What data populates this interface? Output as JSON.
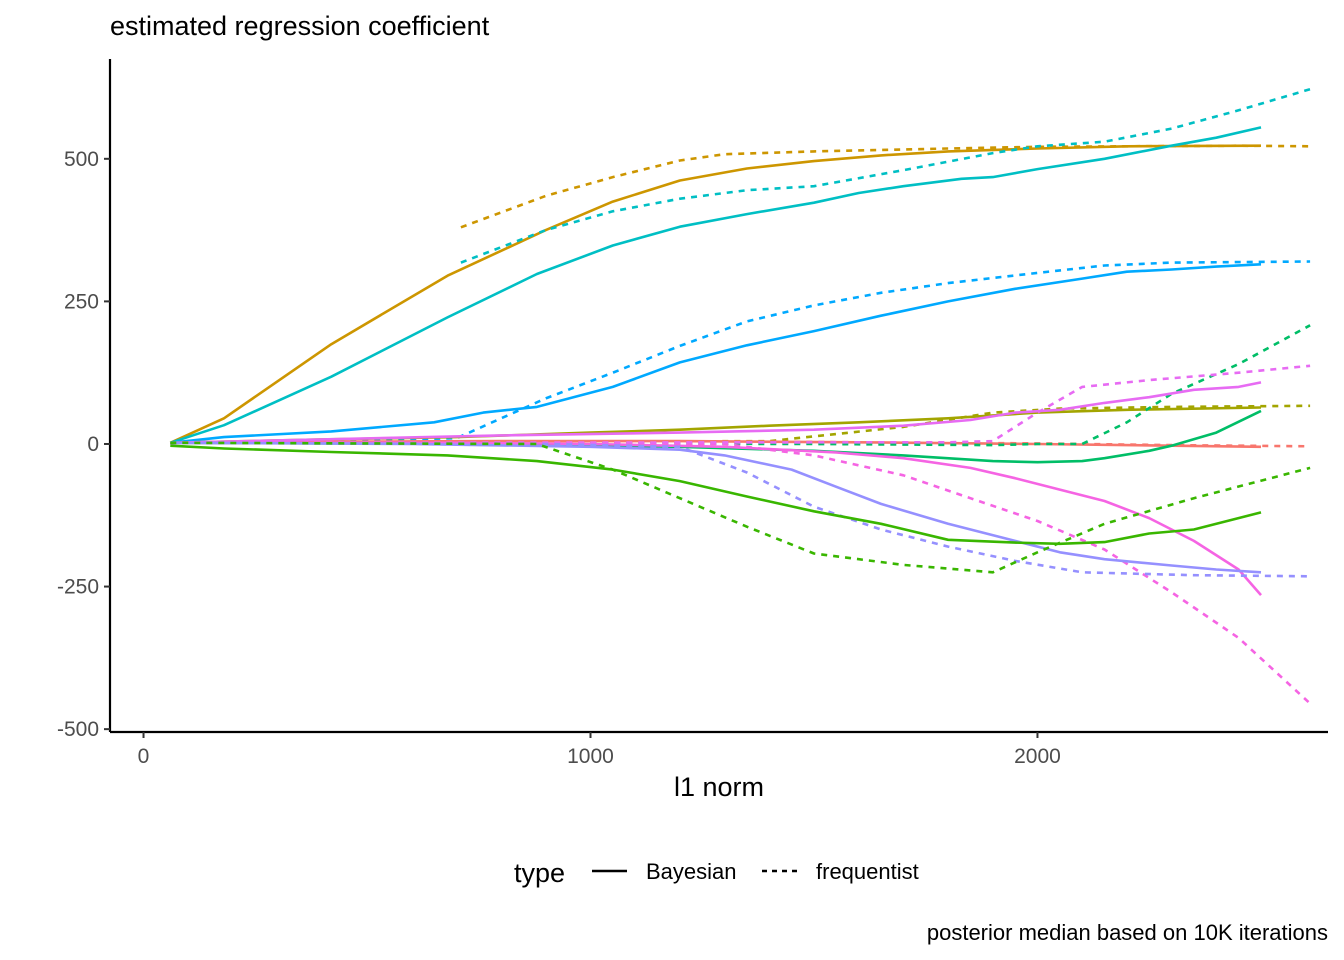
{
  "chart_data": {
    "type": "line",
    "title": "estimated regression coefficient",
    "xlabel": "l1 norm",
    "ylabel": "",
    "caption": "posterior median based on 10K iterations",
    "xlim": [
      -75,
      2650
    ],
    "ylim": [
      -505,
      675
    ],
    "x_ticks": [
      0,
      1000,
      2000
    ],
    "x_tick_labels": [
      "0",
      "1000",
      "2000"
    ],
    "y_ticks": [
      -500,
      -250,
      0,
      250,
      500
    ],
    "y_tick_labels": [
      "-500",
      "-250",
      "0",
      "250",
      "500"
    ],
    "grid": false,
    "legend": {
      "title": "type",
      "position": "bottom",
      "entries": [
        {
          "label": "Bayesian",
          "dash": "solid"
        },
        {
          "label": "frequentist",
          "dash": "dashed"
        }
      ]
    },
    "series": [
      {
        "type": "Bayesian",
        "color": "#CD9600",
        "points": [
          [
            60,
            2
          ],
          [
            180,
            45
          ],
          [
            420,
            175
          ],
          [
            680,
            295
          ],
          [
            900,
            375
          ],
          [
            1050,
            425
          ],
          [
            1200,
            462
          ],
          [
            1350,
            483
          ],
          [
            1500,
            496
          ],
          [
            1650,
            506
          ],
          [
            1800,
            513
          ],
          [
            2000,
            518
          ],
          [
            2200,
            522
          ],
          [
            2500,
            523
          ]
        ]
      },
      {
        "type": "frequentist",
        "color": "#CD9600",
        "points": [
          [
            710,
            380
          ],
          [
            900,
            435
          ],
          [
            1050,
            468
          ],
          [
            1200,
            497
          ],
          [
            1300,
            508
          ],
          [
            1500,
            513
          ],
          [
            1800,
            518
          ],
          [
            2000,
            521
          ],
          [
            2200,
            522
          ],
          [
            2450,
            523
          ],
          [
            2610,
            522
          ]
        ]
      },
      {
        "type": "Bayesian",
        "color": "#00BFC4",
        "points": [
          [
            60,
            2
          ],
          [
            180,
            33
          ],
          [
            420,
            118
          ],
          [
            680,
            222
          ],
          [
            880,
            298
          ],
          [
            1050,
            348
          ],
          [
            1200,
            381
          ],
          [
            1350,
            403
          ],
          [
            1500,
            423
          ],
          [
            1600,
            440
          ],
          [
            1700,
            452
          ],
          [
            1830,
            465
          ],
          [
            1900,
            468
          ],
          [
            2000,
            482
          ],
          [
            2150,
            500
          ],
          [
            2300,
            523
          ],
          [
            2400,
            537
          ],
          [
            2500,
            555
          ]
        ]
      },
      {
        "type": "frequentist",
        "color": "#00BFC4",
        "points": [
          [
            710,
            318
          ],
          [
            900,
            375
          ],
          [
            1050,
            408
          ],
          [
            1200,
            430
          ],
          [
            1350,
            445
          ],
          [
            1500,
            452
          ],
          [
            1700,
            480
          ],
          [
            1900,
            510
          ],
          [
            2000,
            522
          ],
          [
            2150,
            530
          ],
          [
            2300,
            553
          ],
          [
            2450,
            585
          ],
          [
            2610,
            622
          ]
        ]
      },
      {
        "type": "Bayesian",
        "color": "#00A9FF",
        "points": [
          [
            60,
            2
          ],
          [
            180,
            12
          ],
          [
            420,
            22
          ],
          [
            650,
            38
          ],
          [
            760,
            55
          ],
          [
            880,
            65
          ],
          [
            1050,
            100
          ],
          [
            1200,
            143
          ],
          [
            1350,
            173
          ],
          [
            1500,
            198
          ],
          [
            1650,
            225
          ],
          [
            1800,
            250
          ],
          [
            1950,
            272
          ],
          [
            2100,
            290
          ],
          [
            2200,
            302
          ],
          [
            2300,
            306
          ],
          [
            2400,
            311
          ],
          [
            2500,
            315
          ]
        ]
      },
      {
        "type": "frequentist",
        "color": "#00A9FF",
        "points": [
          [
            60,
            2
          ],
          [
            700,
            10
          ],
          [
            900,
            80
          ],
          [
            1050,
            125
          ],
          [
            1200,
            172
          ],
          [
            1350,
            215
          ],
          [
            1500,
            243
          ],
          [
            1650,
            265
          ],
          [
            1800,
            282
          ],
          [
            2000,
            300
          ],
          [
            2150,
            313
          ],
          [
            2300,
            318
          ],
          [
            2610,
            320
          ]
        ]
      },
      {
        "type": "Bayesian",
        "color": "#A3A500",
        "points": [
          [
            60,
            2
          ],
          [
            400,
            8
          ],
          [
            700,
            12
          ],
          [
            1000,
            20
          ],
          [
            1200,
            25
          ],
          [
            1400,
            32
          ],
          [
            1600,
            38
          ],
          [
            1800,
            45
          ],
          [
            2000,
            55
          ],
          [
            2200,
            60
          ],
          [
            2500,
            64
          ]
        ]
      },
      {
        "type": "frequentist",
        "color": "#A3A500",
        "points": [
          [
            60,
            2
          ],
          [
            1400,
            5
          ],
          [
            1700,
            30
          ],
          [
            1900,
            55
          ],
          [
            2050,
            62
          ],
          [
            2300,
            65
          ],
          [
            2610,
            67
          ]
        ]
      },
      {
        "type": "Bayesian",
        "color": "#F8766D",
        "points": [
          [
            60,
            2
          ],
          [
            400,
            4
          ],
          [
            800,
            5
          ],
          [
            1200,
            5
          ],
          [
            1600,
            3
          ],
          [
            2000,
            0
          ],
          [
            2300,
            -3
          ],
          [
            2500,
            -5
          ]
        ]
      },
      {
        "type": "frequentist",
        "color": "#F8766D",
        "points": [
          [
            60,
            2
          ],
          [
            800,
            4
          ],
          [
            1400,
            4
          ],
          [
            2000,
            1
          ],
          [
            2300,
            -2
          ],
          [
            2610,
            -4
          ]
        ]
      },
      {
        "type": "Bayesian",
        "color": "#00BE67",
        "points": [
          [
            60,
            2
          ],
          [
            800,
            0
          ],
          [
            1200,
            -5
          ],
          [
            1500,
            -12
          ],
          [
            1700,
            -20
          ],
          [
            1900,
            -30
          ],
          [
            2000,
            -32
          ],
          [
            2100,
            -30
          ],
          [
            2150,
            -25
          ],
          [
            2250,
            -12
          ],
          [
            2300,
            -3
          ],
          [
            2400,
            20
          ],
          [
            2500,
            58
          ]
        ]
      },
      {
        "type": "frequentist",
        "color": "#00BE67",
        "points": [
          [
            60,
            2
          ],
          [
            1500,
            0
          ],
          [
            1900,
            -2
          ],
          [
            2000,
            0
          ],
          [
            2100,
            0
          ],
          [
            2200,
            38
          ],
          [
            2300,
            88
          ],
          [
            2450,
            140
          ],
          [
            2610,
            208
          ]
        ]
      },
      {
        "type": "Bayesian",
        "color": "#F564E3",
        "points": [
          [
            60,
            2
          ],
          [
            700,
            2
          ],
          [
            1000,
            0
          ],
          [
            1300,
            -5
          ],
          [
            1550,
            -15
          ],
          [
            1700,
            -25
          ],
          [
            1850,
            -42
          ],
          [
            1950,
            -60
          ],
          [
            2050,
            -80
          ],
          [
            2150,
            -100
          ],
          [
            2250,
            -130
          ],
          [
            2350,
            -170
          ],
          [
            2450,
            -220
          ],
          [
            2500,
            -265
          ]
        ]
      },
      {
        "type": "frequentist",
        "color": "#F564E3",
        "points": [
          [
            60,
            2
          ],
          [
            1300,
            0
          ],
          [
            1500,
            -20
          ],
          [
            1700,
            -55
          ],
          [
            1850,
            -95
          ],
          [
            2000,
            -135
          ],
          [
            2150,
            -185
          ],
          [
            2300,
            -260
          ],
          [
            2450,
            -340
          ],
          [
            2610,
            -455
          ]
        ]
      },
      {
        "type": "Bayesian",
        "color": "#E76BF3",
        "points": [
          [
            60,
            2
          ],
          [
            400,
            8
          ],
          [
            800,
            15
          ],
          [
            1200,
            20
          ],
          [
            1500,
            25
          ],
          [
            1700,
            32
          ],
          [
            1850,
            42
          ],
          [
            1950,
            55
          ],
          [
            2050,
            60
          ],
          [
            2150,
            72
          ],
          [
            2250,
            82
          ],
          [
            2350,
            95
          ],
          [
            2450,
            100
          ],
          [
            2500,
            108
          ]
        ]
      },
      {
        "type": "frequentist",
        "color": "#E76BF3",
        "points": [
          [
            60,
            2
          ],
          [
            1800,
            3
          ],
          [
            1900,
            5
          ],
          [
            2000,
            55
          ],
          [
            2100,
            100
          ],
          [
            2250,
            112
          ],
          [
            2450,
            125
          ],
          [
            2610,
            137
          ]
        ]
      },
      {
        "type": "Bayesian",
        "color": "#9590FF",
        "points": [
          [
            60,
            2
          ],
          [
            600,
            0
          ],
          [
            1000,
            -5
          ],
          [
            1200,
            -10
          ],
          [
            1300,
            -20
          ],
          [
            1450,
            -45
          ],
          [
            1550,
            -75
          ],
          [
            1650,
            -105
          ],
          [
            1800,
            -140
          ],
          [
            1950,
            -170
          ],
          [
            2050,
            -190
          ],
          [
            2150,
            -202
          ],
          [
            2300,
            -213
          ],
          [
            2400,
            -220
          ],
          [
            2500,
            -225
          ]
        ]
      },
      {
        "type": "frequentist",
        "color": "#9590FF",
        "points": [
          [
            60,
            2
          ],
          [
            900,
            0
          ],
          [
            1200,
            -5
          ],
          [
            1350,
            -50
          ],
          [
            1500,
            -110
          ],
          [
            1650,
            -150
          ],
          [
            1800,
            -180
          ],
          [
            1950,
            -205
          ],
          [
            2100,
            -225
          ],
          [
            2350,
            -230
          ],
          [
            2610,
            -232
          ]
        ]
      },
      {
        "type": "Bayesian",
        "color": "#39B600",
        "points": [
          [
            60,
            -3
          ],
          [
            180,
            -8
          ],
          [
            420,
            -14
          ],
          [
            680,
            -20
          ],
          [
            880,
            -30
          ],
          [
            1050,
            -45
          ],
          [
            1200,
            -65
          ],
          [
            1350,
            -92
          ],
          [
            1500,
            -118
          ],
          [
            1650,
            -140
          ],
          [
            1800,
            -168
          ],
          [
            1950,
            -173
          ],
          [
            2050,
            -175
          ],
          [
            2150,
            -172
          ],
          [
            2250,
            -157
          ],
          [
            2350,
            -150
          ],
          [
            2500,
            -120
          ]
        ]
      },
      {
        "type": "frequentist",
        "color": "#39B600",
        "points": [
          [
            60,
            2
          ],
          [
            880,
            0
          ],
          [
            1050,
            -45
          ],
          [
            1200,
            -95
          ],
          [
            1350,
            -145
          ],
          [
            1500,
            -192
          ],
          [
            1700,
            -212
          ],
          [
            1900,
            -225
          ],
          [
            2000,
            -190
          ],
          [
            2150,
            -140
          ],
          [
            2350,
            -95
          ],
          [
            2610,
            -42
          ]
        ]
      }
    ]
  }
}
